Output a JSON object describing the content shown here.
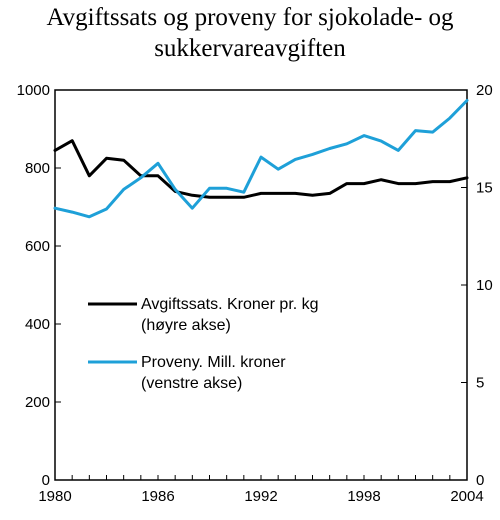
{
  "chart_data": {
    "type": "line",
    "title_line1": "Avgiftssats og proveny for sjokolade- og",
    "title_line2": "sukkervareavgiften",
    "x_ticks": [
      "1980",
      "1986",
      "1992",
      "1998",
      "2004"
    ],
    "x": [
      1980,
      1981,
      1982,
      1983,
      1984,
      1985,
      1986,
      1987,
      1988,
      1989,
      1990,
      1991,
      1992,
      1993,
      1994,
      1995,
      1996,
      1997,
      1998,
      1999,
      2000,
      2001,
      2002,
      2003,
      2004
    ],
    "xlim": [
      1980,
      2004
    ],
    "left_axis": {
      "ylim": [
        0,
        1000
      ],
      "ticks": [
        "0",
        "200",
        "400",
        "600",
        "800",
        "1000"
      ]
    },
    "right_axis": {
      "ylim": [
        0,
        20
      ],
      "ticks": [
        "0",
        "5",
        "10",
        "15",
        "20"
      ]
    },
    "series": [
      {
        "name_line1": "Avgiftssats. Kroner pr. kg",
        "name_line2": "(høyre akse)",
        "axis": "right",
        "color": "#000000",
        "values": [
          16.9,
          17.4,
          15.6,
          16.5,
          16.4,
          15.6,
          15.6,
          14.8,
          14.6,
          14.5,
          14.5,
          14.5,
          14.7,
          14.7,
          14.7,
          14.6,
          14.7,
          15.2,
          15.2,
          15.4,
          15.2,
          15.2,
          15.3,
          15.3,
          15.5
        ]
      },
      {
        "name_line1": "Proveny. Mill. kroner",
        "name_line2": "(venstre akse)",
        "axis": "left",
        "color": "#1ea0d8",
        "values": [
          697,
          687,
          675,
          695,
          745,
          775,
          812,
          745,
          697,
          748,
          748,
          738,
          828,
          797,
          822,
          835,
          850,
          862,
          883,
          869,
          845,
          896,
          892,
          928,
          973
        ]
      }
    ],
    "grid": false,
    "legend_placement": "center-left"
  }
}
